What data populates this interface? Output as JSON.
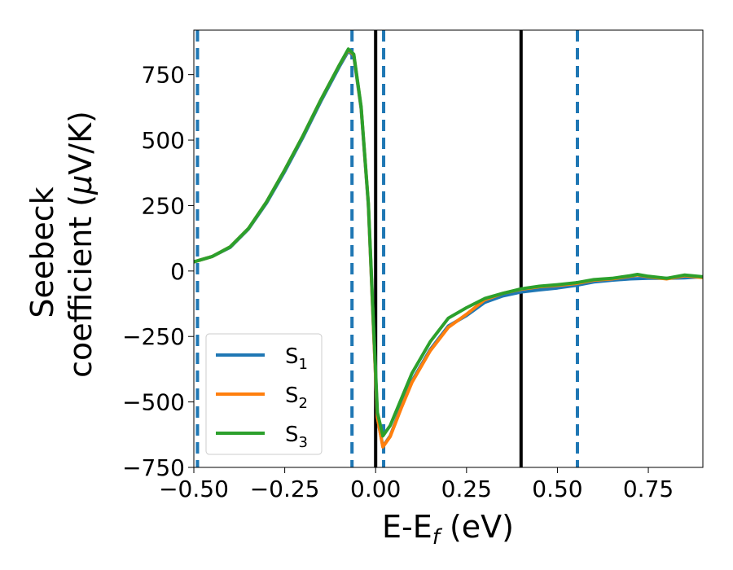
{
  "chart_data": {
    "type": "line",
    "xlabel": "E-E",
    "xlabel_subscript": "f",
    "xlabel_unit": " (eV)",
    "ylabel_line1": "Seebeck",
    "ylabel_line2_prefix": "coefficient  (",
    "ylabel_mu": "μ",
    "ylabel_line2_suffix": "V/K)",
    "xlim": [
      -0.5,
      0.9
    ],
    "ylim": [
      -750,
      920
    ],
    "x_ticks": [
      -0.5,
      -0.25,
      0.0,
      0.25,
      0.5,
      0.75
    ],
    "x_tick_labels": [
      "−0.50",
      "−0.25",
      "0.00",
      "0.25",
      "0.50",
      "0.75"
    ],
    "y_ticks": [
      750,
      500,
      250,
      0,
      -250,
      -500,
      -750
    ],
    "y_tick_labels": [
      "750",
      "500",
      "250",
      "0",
      "−250",
      "−500",
      "−750"
    ],
    "legend_position": "lower-left",
    "series": [
      {
        "name": "S",
        "subscript": "1",
        "color": "#1f77b4",
        "points": [
          [
            -0.5,
            35
          ],
          [
            -0.45,
            55
          ],
          [
            -0.4,
            90
          ],
          [
            -0.35,
            160
          ],
          [
            -0.3,
            260
          ],
          [
            -0.25,
            380
          ],
          [
            -0.2,
            510
          ],
          [
            -0.15,
            650
          ],
          [
            -0.1,
            780
          ],
          [
            -0.075,
            840
          ],
          [
            -0.06,
            820
          ],
          [
            -0.04,
            620
          ],
          [
            -0.02,
            250
          ],
          [
            -0.005,
            -250
          ],
          [
            0.005,
            -560
          ],
          [
            0.02,
            -670
          ],
          [
            0.04,
            -630
          ],
          [
            0.07,
            -520
          ],
          [
            0.1,
            -420
          ],
          [
            0.15,
            -300
          ],
          [
            0.2,
            -210
          ],
          [
            0.25,
            -170
          ],
          [
            0.3,
            -120
          ],
          [
            0.35,
            -95
          ],
          [
            0.4,
            -80
          ],
          [
            0.45,
            -72
          ],
          [
            0.5,
            -65
          ],
          [
            0.55,
            -55
          ],
          [
            0.6,
            -42
          ],
          [
            0.65,
            -35
          ],
          [
            0.7,
            -30
          ],
          [
            0.75,
            -28
          ],
          [
            0.8,
            -28
          ],
          [
            0.85,
            -26
          ],
          [
            0.9,
            -22
          ]
        ]
      },
      {
        "name": "S",
        "subscript": "2",
        "color": "#ff7f0e",
        "points": [
          [
            -0.5,
            35
          ],
          [
            -0.45,
            55
          ],
          [
            -0.4,
            92
          ],
          [
            -0.35,
            162
          ],
          [
            -0.3,
            264
          ],
          [
            -0.25,
            386
          ],
          [
            -0.2,
            516
          ],
          [
            -0.15,
            656
          ],
          [
            -0.1,
            786
          ],
          [
            -0.075,
            845
          ],
          [
            -0.06,
            825
          ],
          [
            -0.04,
            625
          ],
          [
            -0.02,
            255
          ],
          [
            -0.005,
            -250
          ],
          [
            0.005,
            -560
          ],
          [
            0.02,
            -672
          ],
          [
            0.04,
            -632
          ],
          [
            0.07,
            -525
          ],
          [
            0.1,
            -425
          ],
          [
            0.15,
            -305
          ],
          [
            0.2,
            -215
          ],
          [
            0.25,
            -165
          ],
          [
            0.3,
            -110
          ],
          [
            0.35,
            -85
          ],
          [
            0.4,
            -70
          ],
          [
            0.45,
            -60
          ],
          [
            0.5,
            -55
          ],
          [
            0.55,
            -48
          ],
          [
            0.6,
            -35
          ],
          [
            0.65,
            -30
          ],
          [
            0.7,
            -20
          ],
          [
            0.72,
            -15
          ],
          [
            0.75,
            -22
          ],
          [
            0.8,
            -30
          ],
          [
            0.85,
            -18
          ],
          [
            0.9,
            -25
          ]
        ]
      },
      {
        "name": "S",
        "subscript": "3",
        "color": "#2ca02c",
        "points": [
          [
            -0.5,
            35
          ],
          [
            -0.45,
            55
          ],
          [
            -0.4,
            92
          ],
          [
            -0.35,
            162
          ],
          [
            -0.3,
            264
          ],
          [
            -0.25,
            386
          ],
          [
            -0.2,
            516
          ],
          [
            -0.15,
            656
          ],
          [
            -0.1,
            786
          ],
          [
            -0.075,
            848
          ],
          [
            -0.06,
            828
          ],
          [
            -0.04,
            628
          ],
          [
            -0.02,
            258
          ],
          [
            -0.005,
            -230
          ],
          [
            0.005,
            -540
          ],
          [
            0.02,
            -630
          ],
          [
            0.04,
            -590
          ],
          [
            0.07,
            -490
          ],
          [
            0.1,
            -390
          ],
          [
            0.15,
            -270
          ],
          [
            0.2,
            -180
          ],
          [
            0.25,
            -140
          ],
          [
            0.3,
            -105
          ],
          [
            0.35,
            -85
          ],
          [
            0.4,
            -68
          ],
          [
            0.45,
            -58
          ],
          [
            0.5,
            -52
          ],
          [
            0.55,
            -45
          ],
          [
            0.6,
            -33
          ],
          [
            0.65,
            -28
          ],
          [
            0.7,
            -18
          ],
          [
            0.72,
            -13
          ],
          [
            0.75,
            -20
          ],
          [
            0.8,
            -28
          ],
          [
            0.85,
            -15
          ],
          [
            0.9,
            -22
          ]
        ]
      }
    ],
    "vlines_solid": {
      "color": "#000000",
      "x": [
        0.0,
        0.4
      ]
    },
    "vlines_dashed": {
      "color": "#1f77b4",
      "x": [
        -0.49,
        -0.065,
        0.022,
        0.555
      ]
    }
  }
}
